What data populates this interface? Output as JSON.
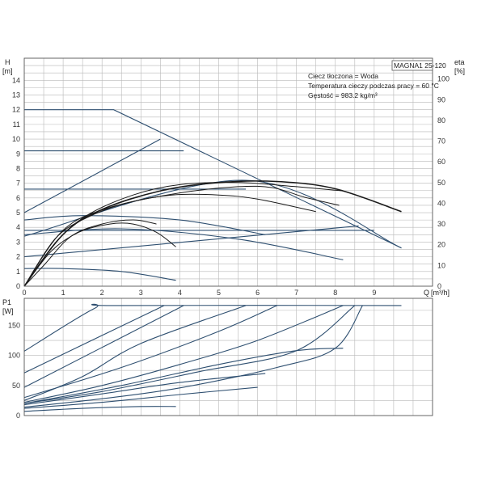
{
  "chart_data": [
    {
      "type": "line",
      "title": "MAGNA1 25-120",
      "annotations": [
        "Ciecz tłoczona = Woda",
        "Temperatura cieczy podczas pracy = 60 °C",
        "Gęstość = 983.2 kg/m³"
      ],
      "ylabel": "H",
      "yunit": "[m]",
      "y2label": "eta",
      "y2unit": "[%]",
      "xlabel": "Q",
      "xunit": "[m³/h]",
      "xlim": [
        0,
        10.5
      ],
      "ylim": [
        0,
        15.5
      ],
      "y2lim": [
        0,
        110
      ],
      "xticks": [
        0,
        1,
        2,
        3,
        4,
        5,
        6,
        7,
        8,
        9
      ],
      "yticks": [
        0,
        1,
        2,
        3,
        4,
        5,
        6,
        7,
        8,
        9,
        10,
        11,
        12,
        13,
        14
      ],
      "y2ticks": [
        0,
        10,
        20,
        30,
        40,
        50,
        60,
        70,
        80,
        90,
        100
      ],
      "grid": true,
      "series": [
        {
          "group": "pump",
          "points": [
            [
              0,
              12
            ],
            [
              2.3,
              12
            ],
            [
              9.7,
              2.6
            ]
          ]
        },
        {
          "group": "pump",
          "points": [
            [
              0,
              9.2
            ],
            [
              4.1,
              9.2
            ]
          ]
        },
        {
          "group": "pump",
          "points": [
            [
              0,
              6.6
            ],
            [
              5.7,
              6.6
            ]
          ]
        },
        {
          "group": "pump",
          "points": [
            [
              0,
              3.8
            ],
            [
              9.0,
              3.8
            ]
          ]
        },
        {
          "group": "pump",
          "points": [
            [
              0,
              5.0
            ],
            [
              3.5,
              10.0
            ]
          ]
        },
        {
          "group": "pump",
          "points": [
            [
              0,
              3.4
            ],
            [
              5.7,
              7.2
            ],
            [
              9.7,
              2.6
            ]
          ]
        },
        {
          "group": "pump",
          "points": [
            [
              0,
              2.0
            ],
            [
              8.6,
              4.1
            ]
          ]
        },
        {
          "group": "pump",
          "points": [
            [
              0,
              4.5
            ],
            [
              1.5,
              4.8
            ],
            [
              4.0,
              4.5
            ],
            [
              6.2,
              3.5
            ]
          ]
        },
        {
          "group": "pump",
          "points": [
            [
              0,
              3.5
            ],
            [
              2.5,
              3.9
            ],
            [
              5.5,
              3.2
            ],
            [
              8.2,
              1.8
            ]
          ]
        },
        {
          "group": "pump",
          "points": [
            [
              0,
              1.2
            ],
            [
              1.0,
              1.2
            ],
            [
              2.5,
              1.0
            ],
            [
              3.9,
              0.4
            ]
          ]
        },
        {
          "group": "efficiency",
          "points": [
            [
              0,
              0
            ],
            [
              0.8,
              21
            ],
            [
              1.6,
              34
            ],
            [
              2.8,
              44
            ],
            [
              4.0,
              49
            ],
            [
              5.5,
              50
            ],
            [
              7.0,
              48
            ],
            [
              8.2,
              46
            ]
          ]
        },
        {
          "group": "efficiency",
          "points": [
            [
              0,
              0
            ],
            [
              1.0,
              25
            ],
            [
              2.0,
              37
            ],
            [
              3.5,
              46
            ],
            [
              5.0,
              50
            ],
            [
              6.5,
              50.5
            ],
            [
              8.0,
              47
            ],
            [
              9.7,
              36
            ]
          ]
        },
        {
          "group": "efficiency",
          "points": [
            [
              0,
              0
            ],
            [
              0.8,
              23
            ],
            [
              1.6,
              33
            ],
            [
              2.6,
              40
            ],
            [
              3.8,
              44
            ],
            [
              5.0,
              44
            ],
            [
              6.0,
              42
            ],
            [
              7.5,
              36
            ]
          ]
        },
        {
          "group": "efficiency",
          "points": [
            [
              0,
              0
            ],
            [
              0.7,
              17
            ],
            [
              1.4,
              26
            ],
            [
              2.2,
              30
            ],
            [
              2.8,
              30
            ],
            [
              3.4,
              26
            ],
            [
              3.9,
              19
            ]
          ]
        },
        {
          "group": "efficiency",
          "points": [
            [
              0,
              0
            ],
            [
              1.0,
              27
            ],
            [
              2.2,
              38
            ],
            [
              4.0,
              45
            ],
            [
              5.5,
              48
            ],
            [
              6.4,
              47.5
            ],
            [
              7.2,
              43
            ],
            [
              8.1,
              39
            ]
          ]
        },
        {
          "group": "efficiency",
          "points": [
            [
              0,
              0
            ],
            [
              0.5,
              10
            ],
            [
              1.2,
              24
            ],
            [
              2.0,
              30
            ],
            [
              2.8,
              32
            ],
            [
              3.4,
              30
            ]
          ]
        }
      ]
    },
    {
      "type": "line",
      "ylabel": "P1",
      "yunit": "[W]",
      "xlim": [
        0,
        10.5
      ],
      "ylim": [
        0,
        195
      ],
      "yticks": [
        0,
        50,
        100,
        150
      ],
      "grid": true,
      "series": [
        {
          "points": [
            [
              0,
              107
            ],
            [
              1.8,
              178
            ],
            [
              2.4,
              183
            ],
            [
              9.7,
              183
            ]
          ]
        },
        {
          "points": [
            [
              0,
              71
            ],
            [
              3.6,
              183
            ]
          ]
        },
        {
          "points": [
            [
              0,
              47
            ],
            [
              4.1,
              183
            ]
          ]
        },
        {
          "points": [
            [
              0,
              25
            ],
            [
              1.5,
              65
            ],
            [
              3.0,
              120
            ],
            [
              5.7,
              183
            ]
          ]
        },
        {
          "points": [
            [
              0,
              30
            ],
            [
              2.5,
              80
            ],
            [
              5.0,
              140
            ],
            [
              6.5,
              183
            ]
          ]
        },
        {
          "points": [
            [
              0,
              22
            ],
            [
              2.0,
              50
            ],
            [
              4.0,
              85
            ],
            [
              6.0,
              125
            ],
            [
              8.2,
              183
            ]
          ]
        },
        {
          "points": [
            [
              0,
              20
            ],
            [
              2.0,
              40
            ],
            [
              4.5,
              73
            ],
            [
              7.0,
              108
            ],
            [
              8.5,
              183
            ]
          ]
        },
        {
          "points": [
            [
              0,
              14
            ],
            [
              2.0,
              28
            ],
            [
              4.0,
              46
            ],
            [
              6.5,
              80
            ],
            [
              8.0,
              112
            ],
            [
              8.7,
              183
            ]
          ]
        },
        {
          "points": [
            [
              0,
              20
            ],
            [
              2.5,
              50
            ],
            [
              5.0,
              85
            ],
            [
              7.0,
              108
            ],
            [
              8.2,
              112
            ]
          ]
        },
        {
          "points": [
            [
              0,
              18
            ],
            [
              2.0,
              36
            ],
            [
              4.0,
              55
            ],
            [
              6.2,
              70
            ]
          ]
        },
        {
          "points": [
            [
              0,
              12
            ],
            [
              2.0,
              22
            ],
            [
              4.0,
              35
            ],
            [
              6.0,
              47
            ]
          ]
        },
        {
          "points": [
            [
              0,
              7
            ],
            [
              1.5,
              12
            ],
            [
              3.0,
              15
            ],
            [
              3.9,
              15
            ]
          ]
        }
      ]
    }
  ]
}
